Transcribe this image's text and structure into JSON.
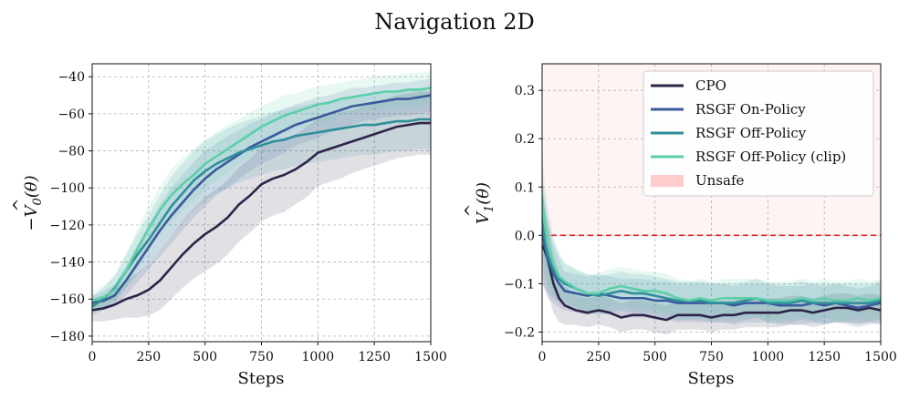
{
  "title": "Navigation 2D",
  "colors": {
    "CPO": "#2e2448",
    "RSGF On-Policy": "#3a5a9c",
    "RSGF Off-Policy": "#2e8f9a",
    "RSGF Off-Policy (clip)": "#5ccfa8",
    "Unsafe": "#ffcccc",
    "threshold": "#e02020"
  },
  "chart_data": [
    {
      "type": "line",
      "name": "left",
      "xlabel": "Steps",
      "ylabel": "−V̂₀(θ)",
      "ylabel_main": "−V",
      "ylabel_hat": "^",
      "ylabel_sub": "0",
      "ylabel_arg": "(θ)",
      "xlim": [
        0,
        1500
      ],
      "ylim": [
        -183,
        -33
      ],
      "xticks": [
        0,
        250,
        500,
        750,
        1000,
        1250,
        1500
      ],
      "yticks": [
        -180,
        -160,
        -140,
        -120,
        -100,
        -80,
        -60,
        -40
      ],
      "xtick_labels": [
        "0",
        "250",
        "500",
        "750",
        "1000",
        "1250",
        "1500"
      ],
      "ytick_labels": [
        "−180",
        "−160",
        "−140",
        "−120",
        "−100",
        "−80",
        "−60",
        "−40"
      ],
      "x": [
        0,
        50,
        100,
        150,
        200,
        250,
        300,
        350,
        400,
        450,
        500,
        550,
        600,
        650,
        700,
        750,
        800,
        850,
        900,
        950,
        1000,
        1050,
        1100,
        1150,
        1200,
        1250,
        1300,
        1350,
        1400,
        1450,
        1500
      ],
      "series": [
        {
          "name": "CPO",
          "values": [
            -166,
            -165,
            -163,
            -160,
            -158,
            -155,
            -150,
            -143,
            -136,
            -130,
            -125,
            -121,
            -116,
            -109,
            -104,
            -98,
            -95,
            -93,
            -90,
            -86,
            -81,
            -79,
            -77,
            -75,
            -73,
            -71,
            -69,
            -67,
            -66,
            -65,
            -65
          ],
          "spread": [
            6,
            7,
            8,
            10,
            12,
            14,
            16,
            17,
            18,
            19,
            20,
            20,
            20,
            20,
            20,
            20,
            20,
            20,
            19,
            19,
            18,
            18,
            18,
            17,
            17,
            17,
            17,
            17,
            17,
            17,
            17
          ]
        },
        {
          "name": "RSGF On-Policy",
          "values": [
            -162,
            -161,
            -158,
            -150,
            -141,
            -132,
            -123,
            -115,
            -108,
            -101,
            -95,
            -90,
            -86,
            -82,
            -78,
            -75,
            -72,
            -69,
            -66,
            -64,
            -62,
            -60,
            -58,
            -56,
            -55,
            -54,
            -53,
            -52,
            -52,
            -51,
            -50
          ],
          "spread": [
            4,
            5,
            6,
            8,
            10,
            12,
            14,
            15,
            15,
            15,
            15,
            14,
            14,
            13,
            13,
            12,
            12,
            12,
            11,
            11,
            11,
            10,
            10,
            10,
            9,
            9,
            9,
            9,
            9,
            9,
            9
          ]
        },
        {
          "name": "RSGF Off-Policy",
          "values": [
            -164,
            -160,
            -154,
            -145,
            -136,
            -128,
            -119,
            -110,
            -103,
            -96,
            -91,
            -87,
            -84,
            -81,
            -79,
            -77,
            -75,
            -74,
            -72,
            -71,
            -70,
            -69,
            -68,
            -67,
            -66,
            -66,
            -65,
            -64,
            -64,
            -63,
            -63
          ],
          "spread": [
            5,
            6,
            7,
            9,
            11,
            13,
            15,
            16,
            16,
            16,
            16,
            16,
            16,
            16,
            16,
            16,
            16,
            16,
            16,
            16,
            16,
            16,
            16,
            16,
            16,
            16,
            16,
            16,
            16,
            16,
            16
          ]
        },
        {
          "name": "RSGF Off-Policy (clip)",
          "values": [
            -161,
            -159,
            -155,
            -145,
            -133,
            -122,
            -112,
            -104,
            -98,
            -93,
            -87,
            -83,
            -79,
            -75,
            -71,
            -67,
            -64,
            -61,
            -59,
            -57,
            -55,
            -54,
            -52,
            -51,
            -50,
            -49,
            -48,
            -48,
            -47,
            -47,
            -46
          ],
          "spread": [
            5,
            6,
            7,
            9,
            11,
            12,
            13,
            14,
            14,
            14,
            13,
            13,
            13,
            12,
            12,
            11,
            11,
            11,
            10,
            10,
            10,
            10,
            9,
            9,
            9,
            9,
            9,
            9,
            9,
            9,
            9
          ]
        }
      ]
    },
    {
      "type": "line",
      "name": "right",
      "xlabel": "Steps",
      "ylabel": "V̂₁(θ)",
      "ylabel_main": "V",
      "ylabel_hat": "^",
      "ylabel_sub": "1",
      "ylabel_arg": "(θ)",
      "xlim": [
        0,
        1500
      ],
      "ylim": [
        -0.22,
        0.355
      ],
      "xticks": [
        0,
        250,
        500,
        750,
        1000,
        1250,
        1500
      ],
      "yticks": [
        -0.2,
        -0.1,
        0.0,
        0.1,
        0.2,
        0.3
      ],
      "xtick_labels": [
        "0",
        "250",
        "500",
        "750",
        "1000",
        "1250",
        "1500"
      ],
      "ytick_labels": [
        "−0.2",
        "−0.1",
        "0.0",
        "0.1",
        "0.2",
        "0.3"
      ],
      "threshold": 0.0,
      "unsafe_region": [
        0.0,
        0.355
      ],
      "x": [
        0,
        10,
        25,
        50,
        75,
        100,
        150,
        200,
        250,
        300,
        350,
        400,
        450,
        500,
        550,
        600,
        650,
        700,
        750,
        800,
        850,
        900,
        950,
        1000,
        1050,
        1100,
        1150,
        1200,
        1250,
        1300,
        1350,
        1400,
        1450,
        1500
      ],
      "series": [
        {
          "name": "CPO",
          "values": [
            -0.02,
            -0.03,
            -0.05,
            -0.1,
            -0.13,
            -0.145,
            -0.155,
            -0.16,
            -0.155,
            -0.16,
            -0.17,
            -0.165,
            -0.165,
            -0.17,
            -0.175,
            -0.165,
            -0.165,
            -0.165,
            -0.17,
            -0.165,
            -0.165,
            -0.16,
            -0.16,
            -0.16,
            -0.16,
            -0.155,
            -0.155,
            -0.16,
            -0.155,
            -0.15,
            -0.15,
            -0.155,
            -0.15,
            -0.155
          ],
          "spread": [
            0.08,
            0.08,
            0.07,
            0.06,
            0.05,
            0.04,
            0.03,
            0.03,
            0.03,
            0.03,
            0.03,
            0.03,
            0.03,
            0.03,
            0.03,
            0.03,
            0.03,
            0.03,
            0.03,
            0.03,
            0.03,
            0.03,
            0.03,
            0.03,
            0.03,
            0.03,
            0.03,
            0.03,
            0.03,
            0.03,
            0.03,
            0.03,
            0.03,
            0.03
          ]
        },
        {
          "name": "RSGF On-Policy",
          "values": [
            0.02,
            -0.02,
            -0.05,
            -0.08,
            -0.1,
            -0.115,
            -0.12,
            -0.125,
            -0.12,
            -0.125,
            -0.13,
            -0.13,
            -0.13,
            -0.135,
            -0.135,
            -0.14,
            -0.14,
            -0.14,
            -0.14,
            -0.14,
            -0.145,
            -0.14,
            -0.14,
            -0.14,
            -0.145,
            -0.145,
            -0.145,
            -0.14,
            -0.145,
            -0.14,
            -0.145,
            -0.15,
            -0.145,
            -0.14
          ],
          "spread": [
            0.1,
            0.09,
            0.08,
            0.06,
            0.05,
            0.04,
            0.04,
            0.04,
            0.04,
            0.04,
            0.04,
            0.04,
            0.04,
            0.04,
            0.04,
            0.04,
            0.04,
            0.04,
            0.04,
            0.04,
            0.04,
            0.04,
            0.04,
            0.04,
            0.04,
            0.04,
            0.04,
            0.04,
            0.04,
            0.04,
            0.04,
            0.04,
            0.04,
            0.04
          ]
        },
        {
          "name": "RSGF Off-Policy",
          "values": [
            0.06,
            0.0,
            -0.04,
            -0.07,
            -0.09,
            -0.1,
            -0.11,
            -0.12,
            -0.125,
            -0.12,
            -0.115,
            -0.12,
            -0.12,
            -0.125,
            -0.13,
            -0.135,
            -0.135,
            -0.135,
            -0.14,
            -0.14,
            -0.14,
            -0.135,
            -0.13,
            -0.14,
            -0.14,
            -0.14,
            -0.135,
            -0.14,
            -0.14,
            -0.14,
            -0.14,
            -0.14,
            -0.14,
            -0.135
          ],
          "spread": [
            0.1,
            0.09,
            0.08,
            0.06,
            0.05,
            0.04,
            0.04,
            0.04,
            0.04,
            0.04,
            0.04,
            0.04,
            0.04,
            0.04,
            0.04,
            0.04,
            0.04,
            0.04,
            0.04,
            0.04,
            0.04,
            0.04,
            0.04,
            0.04,
            0.04,
            0.04,
            0.04,
            0.04,
            0.04,
            0.04,
            0.04,
            0.04,
            0.04,
            0.04
          ]
        },
        {
          "name": "RSGF Off-Policy (clip)",
          "values": [
            0.08,
            0.03,
            -0.02,
            -0.06,
            -0.085,
            -0.095,
            -0.11,
            -0.12,
            -0.12,
            -0.11,
            -0.105,
            -0.11,
            -0.115,
            -0.115,
            -0.12,
            -0.13,
            -0.135,
            -0.13,
            -0.135,
            -0.13,
            -0.13,
            -0.13,
            -0.13,
            -0.135,
            -0.135,
            -0.135,
            -0.13,
            -0.135,
            -0.13,
            -0.135,
            -0.135,
            -0.13,
            -0.135,
            -0.13
          ],
          "spread": [
            0.1,
            0.09,
            0.08,
            0.06,
            0.05,
            0.04,
            0.04,
            0.04,
            0.04,
            0.04,
            0.04,
            0.04,
            0.04,
            0.04,
            0.04,
            0.04,
            0.04,
            0.04,
            0.04,
            0.04,
            0.04,
            0.04,
            0.04,
            0.04,
            0.04,
            0.04,
            0.04,
            0.04,
            0.04,
            0.04,
            0.04,
            0.04,
            0.04,
            0.04
          ]
        }
      ],
      "legend": {
        "placement": "top-right",
        "entries": [
          "CPO",
          "RSGF On-Policy",
          "RSGF Off-Policy",
          "RSGF Off-Policy (clip)",
          "Unsafe"
        ]
      }
    }
  ]
}
